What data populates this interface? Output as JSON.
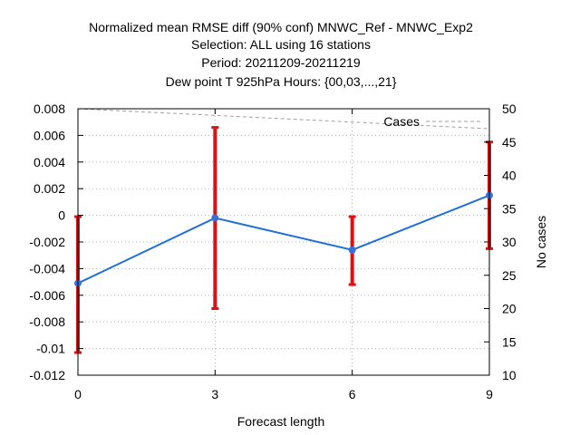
{
  "chart_data": {
    "type": "line",
    "title_lines": [
      "Normalized mean RMSE diff (90% conf) MNWC_Ref - MNWC_Exp2",
      "Selection: ALL using    16 stations",
      "Period: 20211209-20211219",
      "Dew point T 925hPa   Hours: {00,03,...,21}"
    ],
    "xlabel": "Forecast length",
    "ylabel": "",
    "y2label": "No cases",
    "x": [
      0,
      3,
      6,
      9
    ],
    "xticks": [
      0,
      3,
      6,
      9
    ],
    "xlim": [
      0,
      9
    ],
    "ylim": [
      -0.012,
      0.008
    ],
    "yticks": [
      -0.012,
      -0.01,
      -0.008,
      -0.006,
      -0.004,
      -0.002,
      0,
      0.002,
      0.004,
      0.006,
      0.008
    ],
    "ytick_labels": [
      "-0.012",
      "-0.01",
      "-0.008",
      "-0.006",
      "-0.004",
      "-0.002",
      "0",
      "0.002",
      "0.004",
      "0.006",
      "0.008"
    ],
    "y2lim": [
      10,
      50
    ],
    "y2ticks": [
      10,
      15,
      20,
      25,
      30,
      35,
      40,
      45,
      50
    ],
    "grid": true,
    "series": [
      {
        "values": [
          -0.0051,
          -0.0002,
          -0.0026,
          0.0015
        ],
        "error_low": [
          -0.0103,
          -0.007,
          -0.0052,
          -0.0025
        ],
        "error_high": [
          -0.0001,
          0.0066,
          -0.0001,
          0.0055
        ],
        "color": "#1f6fd6",
        "marker_color": "#3b6fd8",
        "error_color": "#e01010"
      },
      {
        "name": "Cases",
        "axis": "y2",
        "values": [
          50,
          49,
          48,
          47
        ],
        "color": "#a0a0a0",
        "style": "dashed"
      }
    ],
    "legend": {
      "position": "top-right",
      "entries": [
        "Cases"
      ]
    }
  }
}
